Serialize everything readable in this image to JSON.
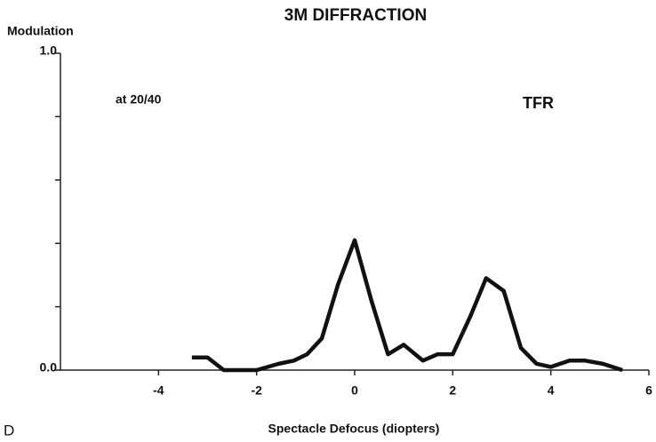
{
  "chart_data": {
    "type": "line",
    "title": "3M DIFFRACTION",
    "ylabel": "Modulation",
    "xlabel": "Spectacle Defocus (diopters)",
    "panel_label": "D",
    "annotations": [
      "at 20/40",
      "TFR"
    ],
    "x": [
      -3.32,
      -3.0,
      -2.67,
      -2.0,
      -1.55,
      -1.24,
      -0.97,
      -0.67,
      -0.34,
      0,
      0.34,
      0.68,
      1.0,
      1.39,
      1.69,
      2.0,
      2.36,
      2.68,
      3.04,
      3.39,
      3.71,
      4.0,
      4.38,
      4.7,
      5.06,
      5.46
    ],
    "series": [
      {
        "name": "TFR",
        "color": "#111111",
        "values": [
          0.04,
          0.04,
          0,
          0,
          0.02,
          0.03,
          0.05,
          0.1,
          0.27,
          0.41,
          0.22,
          0.05,
          0.08,
          0.03,
          0.05,
          0.05,
          0.17,
          0.29,
          0.25,
          0.07,
          0.02,
          0.01,
          0.03,
          0.03,
          0.02,
          0
        ]
      }
    ],
    "xlim": [
      -6,
      6
    ],
    "xticks": [
      -4,
      -2,
      0,
      2,
      4,
      6
    ],
    "ylim": [
      0,
      1
    ],
    "yticks": [
      {
        "value": 0,
        "label": "0.0"
      },
      {
        "value": 1,
        "label": "1.0"
      }
    ],
    "yticks_minor": [
      0.2,
      0.4,
      0.6,
      0.8
    ],
    "grid": false
  }
}
